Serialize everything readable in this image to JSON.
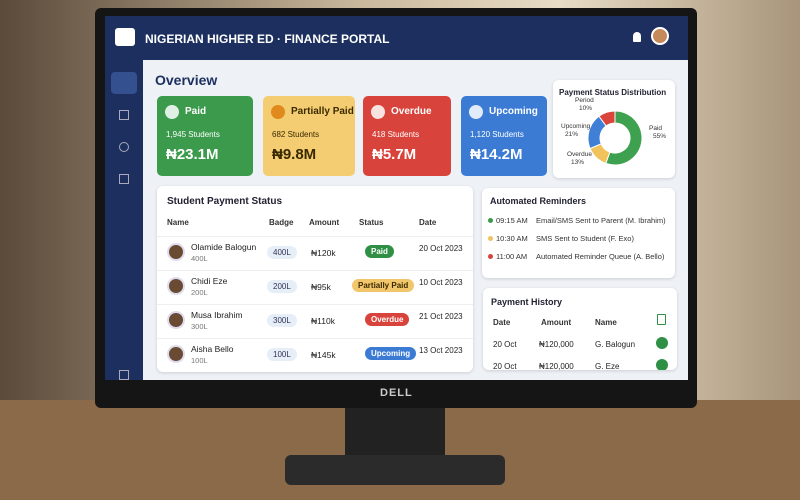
{
  "header": {
    "title": "NIGERIAN HIGHER ED · FINANCE PORTAL"
  },
  "overview": {
    "title": "Overview",
    "cards": [
      {
        "label": "Paid",
        "count": "1,945 Students",
        "amount": "₦23.1M",
        "color": "#3b9a4b"
      },
      {
        "label": "Partially Paid",
        "count": "682 Students",
        "amount": "₦9.8M",
        "color": "#f4cd72"
      },
      {
        "label": "Overdue",
        "count": "418 Students",
        "amount": "₦5.7M",
        "color": "#d8433b"
      },
      {
        "label": "Upcoming",
        "count": "1,120 Students",
        "amount": "₦14.2M",
        "color": "#3b7bd4"
      }
    ]
  },
  "chart_data": {
    "type": "pie",
    "title": "Payment Status Distribution",
    "categories": [
      "Paid",
      "Overdue",
      "Upcoming",
      "Period"
    ],
    "values": [
      55,
      13,
      21,
      10
    ],
    "value_labels": [
      "55%",
      "13%",
      "21%",
      "10%"
    ],
    "colors": [
      "#3ea14f",
      "#f0c35c",
      "#3f7fd6",
      "#d9453d"
    ]
  },
  "students": {
    "title": "Student Payment Status",
    "columns": [
      "Name",
      "Badge",
      "Amount",
      "Status",
      "Date"
    ],
    "rows": [
      {
        "name": "Olamide Balogun",
        "level": "400L",
        "badge": "400L",
        "amount": "₦120k",
        "status": "Paid",
        "status_color": "#2f8f45",
        "date": "20 Oct 2023"
      },
      {
        "name": "Chidi Eze",
        "level": "200L",
        "badge": "200L",
        "amount": "₦95k",
        "status": "Partially Paid",
        "status_color": "#f2c66a",
        "date": "10 Oct 2023"
      },
      {
        "name": "Musa Ibrahim",
        "level": "300L",
        "badge": "300L",
        "amount": "₦110k",
        "status": "Overdue",
        "status_color": "#d8433b",
        "date": "21 Oct 2023"
      },
      {
        "name": "Aisha Bello",
        "level": "100L",
        "badge": "100L",
        "amount": "₦145k",
        "status": "Upcoming",
        "status_color": "#3b7bd4",
        "date": "13 Oct 2023"
      }
    ]
  },
  "reminders": {
    "title": "Automated Reminders",
    "items": [
      {
        "time": "09:15 AM",
        "text": "Email/SMS Sent to Parent (M. Ibrahim)"
      },
      {
        "time": "10:30 AM",
        "text": "SMS Sent to Student (F. Exo)"
      },
      {
        "time": "11:00 AM",
        "text": "Automated Reminder Queue (A. Bello)"
      }
    ]
  },
  "history": {
    "title": "Payment History",
    "columns": [
      "Date",
      "Amount",
      "Name"
    ],
    "rows": [
      {
        "date": "20 Oct",
        "amount": "₦120,000",
        "name": "G. Balogun"
      },
      {
        "date": "20 Oct",
        "amount": "₦120,000",
        "name": "G. Eze"
      }
    ]
  },
  "monitor": {
    "brand": "DELL"
  }
}
